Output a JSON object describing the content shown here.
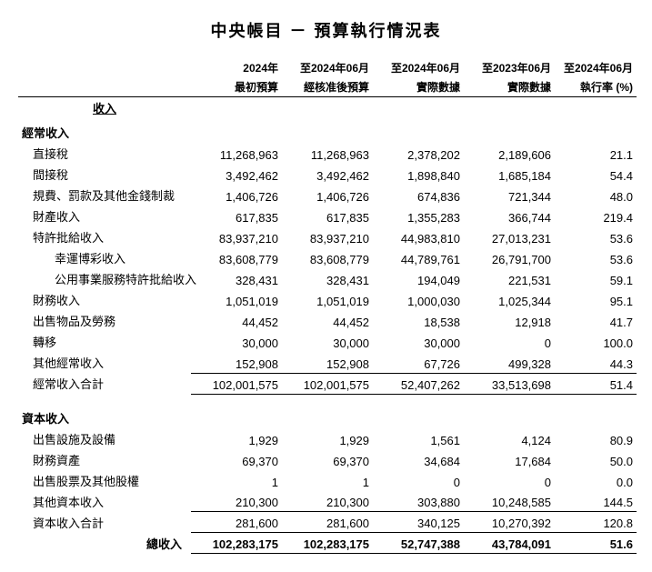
{
  "title": "中央帳目 － 預算執行情況表",
  "headers": {
    "r1": [
      "2024年",
      "至2024年06月",
      "至2024年06月",
      "至2023年06月",
      "至2024年06月"
    ],
    "r2": [
      "最初預算",
      "經核准後預算",
      "實際數據",
      "實際數據",
      "執行率 (%)"
    ]
  },
  "sections": {
    "income_title": "收入",
    "recurrent": {
      "title": "經常收入",
      "rows": [
        {
          "label": "直接稅",
          "v": [
            "11,268,963",
            "11,268,963",
            "2,378,202",
            "2,189,606",
            "21.1"
          ]
        },
        {
          "label": "間接稅",
          "v": [
            "3,492,462",
            "3,492,462",
            "1,898,840",
            "1,685,184",
            "54.4"
          ]
        },
        {
          "label": "規費、罰款及其他金錢制裁",
          "v": [
            "1,406,726",
            "1,406,726",
            "674,836",
            "721,344",
            "48.0"
          ]
        },
        {
          "label": "財產收入",
          "v": [
            "617,835",
            "617,835",
            "1,355,283",
            "366,744",
            "219.4"
          ]
        },
        {
          "label": "特許批給收入",
          "v": [
            "83,937,210",
            "83,937,210",
            "44,983,810",
            "27,013,231",
            "53.6"
          ]
        },
        {
          "label": "幸運博彩收入",
          "indent": 2,
          "v": [
            "83,608,779",
            "83,608,779",
            "44,789,761",
            "26,791,700",
            "53.6"
          ]
        },
        {
          "label": "公用事業服務特許批給收入",
          "indent": 2,
          "v": [
            "328,431",
            "328,431",
            "194,049",
            "221,531",
            "59.1"
          ]
        },
        {
          "label": "財務收入",
          "v": [
            "1,051,019",
            "1,051,019",
            "1,000,030",
            "1,025,344",
            "95.1"
          ]
        },
        {
          "label": "出售物品及勞務",
          "v": [
            "44,452",
            "44,452",
            "18,538",
            "12,918",
            "41.7"
          ]
        },
        {
          "label": "轉移",
          "v": [
            "30,000",
            "30,000",
            "30,000",
            "0",
            "100.0"
          ]
        },
        {
          "label": "其他經常收入",
          "v": [
            "152,908",
            "152,908",
            "67,726",
            "499,328",
            "44.3"
          ]
        }
      ],
      "subtotal": {
        "label": "經常收入合計",
        "v": [
          "102,001,575",
          "102,001,575",
          "52,407,262",
          "33,513,698",
          "51.4"
        ]
      }
    },
    "capital": {
      "title": "資本收入",
      "rows": [
        {
          "label": "出售設施及設備",
          "v": [
            "1,929",
            "1,929",
            "1,561",
            "4,124",
            "80.9"
          ]
        },
        {
          "label": "財務資產",
          "v": [
            "69,370",
            "69,370",
            "34,684",
            "17,684",
            "50.0"
          ]
        },
        {
          "label": "出售股票及其他股權",
          "v": [
            "1",
            "1",
            "0",
            "0",
            "0.0"
          ]
        },
        {
          "label": "其他資本收入",
          "v": [
            "210,300",
            "210,300",
            "303,880",
            "10,248,585",
            "144.5"
          ]
        }
      ],
      "subtotal": {
        "label": "資本收入合計",
        "v": [
          "281,600",
          "281,600",
          "340,125",
          "10,270,392",
          "120.8"
        ]
      }
    },
    "grandtotal": {
      "label": "總收入",
      "v": [
        "102,283,175",
        "102,283,175",
        "52,747,388",
        "43,784,091",
        "51.6"
      ]
    }
  }
}
